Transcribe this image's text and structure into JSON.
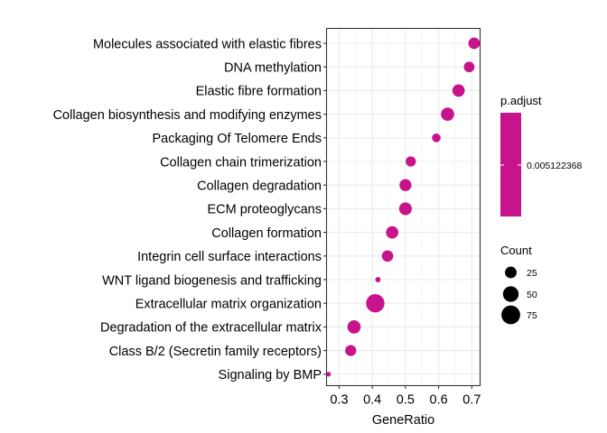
{
  "chart_data": {
    "type": "scatter",
    "xlabel": "GeneRatio",
    "xlim": [
      0.262,
      0.725
    ],
    "xticks": [
      0.3,
      0.4,
      0.5,
      0.6,
      0.7
    ],
    "xtick_labels": [
      "0.3",
      "0.4",
      "0.5",
      "0.6",
      "0.7"
    ],
    "grid": true,
    "categories": [
      "Molecules associated with elastic fibres",
      "DNA methylation",
      "Elastic fibre formation",
      "Collagen biosynthesis and modifying enzymes",
      "Packaging Of Telomere Ends",
      "Collagen chain trimerization",
      "Collagen degradation",
      "ECM proteoglycans",
      "Collagen formation",
      "Integrin cell surface interactions",
      "WNT ligand biogenesis and trafficking",
      "Extracellular matrix organization",
      "Degradation of the extracellular matrix",
      "Class B/2 (Secretin family receptors)",
      "Signaling by BMP"
    ],
    "gene_ratio": [
      0.707,
      0.692,
      0.66,
      0.627,
      0.593,
      0.516,
      0.5,
      0.5,
      0.46,
      0.446,
      0.417,
      0.409,
      0.345,
      0.335,
      0.268
    ],
    "count": [
      24,
      20,
      29,
      34,
      12,
      18,
      27,
      31,
      29,
      24,
      3,
      72,
      34,
      22,
      2
    ],
    "color": "#c8148c",
    "legend_color": {
      "title": "p.adjust",
      "label": "0.005122368"
    },
    "legend_size": {
      "title": "Count",
      "values": [
        25,
        50,
        75
      ],
      "labels": [
        "25",
        "50",
        "75"
      ]
    },
    "legend_placement": "right"
  }
}
